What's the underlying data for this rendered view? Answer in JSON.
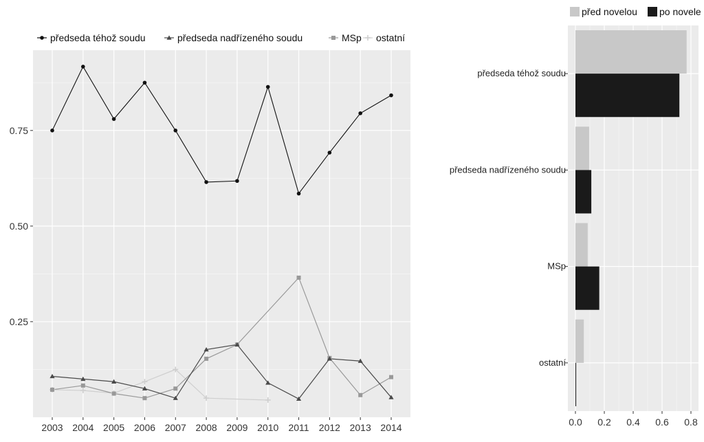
{
  "chart_data": [
    {
      "type": "line",
      "title": "",
      "xlabel": "",
      "ylabel": "",
      "x": [
        "2003",
        "2004",
        "2005",
        "2006",
        "2007",
        "2008",
        "2009",
        "2010",
        "2011",
        "2012",
        "2013",
        "2014"
      ],
      "yticks": [
        "0.25",
        "0.50",
        "0.75"
      ],
      "ylim": [
        0,
        0.96
      ],
      "legend_position": "top",
      "grid": true,
      "series": [
        {
          "name": "předseda téhož soudu",
          "color": "#111111",
          "marker": "circle",
          "values": [
            0.75,
            0.917,
            0.78,
            0.875,
            0.75,
            0.615,
            0.618,
            0.864,
            0.585,
            0.692,
            0.795,
            0.842
          ]
        },
        {
          "name": "předseda nadřízeného soudu",
          "color": "#4a4a4a",
          "marker": "triangle",
          "values": [
            0.107,
            0.1,
            0.093,
            0.075,
            0.05,
            0.177,
            0.19,
            0.09,
            0.048,
            0.153,
            0.147,
            0.052
          ]
        },
        {
          "name": "MSp",
          "color": "#999999",
          "marker": "square",
          "values": [
            0.072,
            0.083,
            0.062,
            0.05,
            0.075,
            0.153,
            0.19,
            null,
            0.365,
            0.155,
            0.058,
            0.105
          ]
        },
        {
          "name": "ostatní",
          "color": "#cfcfcf",
          "marker": "plus",
          "values": [
            0.072,
            0.07,
            0.063,
            0.093,
            0.125,
            0.05,
            null,
            0.045,
            null,
            null,
            null,
            null
          ]
        }
      ]
    },
    {
      "type": "bar",
      "orientation": "horizontal",
      "title": "",
      "xlabel": "",
      "ylabel": "",
      "categories": [
        "předseda téhož soudu",
        "předseda nadřízeného soudu",
        "MSp",
        "ostatní"
      ],
      "xticks": [
        "0.0",
        "0.2",
        "0.4",
        "0.6",
        "0.8"
      ],
      "xlim": [
        0,
        0.8
      ],
      "legend_position": "top",
      "grid": true,
      "series": [
        {
          "name": "před novelou",
          "color": "#c8c8c8",
          "values": [
            0.77,
            0.095,
            0.085,
            0.058
          ]
        },
        {
          "name": "po novele",
          "color": "#1a1a1a",
          "values": [
            0.72,
            0.11,
            0.165,
            0.005
          ]
        }
      ]
    }
  ]
}
